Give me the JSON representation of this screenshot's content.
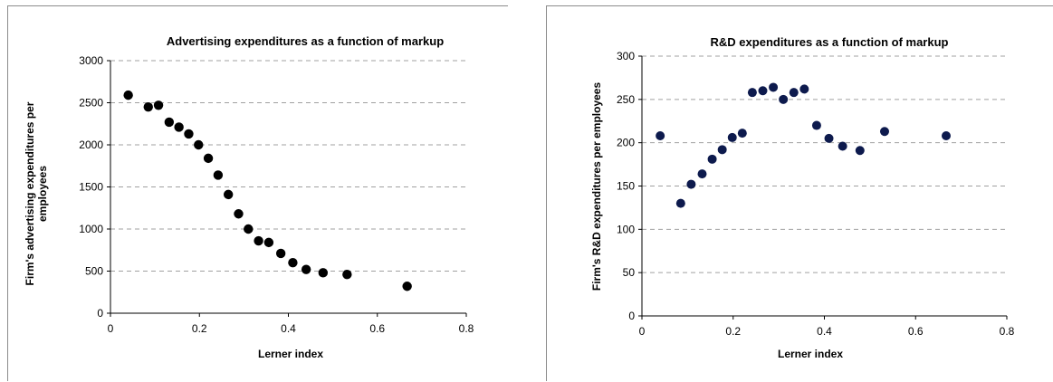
{
  "chart_data": [
    {
      "type": "scatter",
      "title": "Advertising expenditures as a function of markup",
      "xlabel": "Lerner index",
      "ylabel_lines": [
        "Firm's advertising expenditures per",
        "employees"
      ],
      "xlim": [
        0,
        0.8
      ],
      "ylim": [
        0,
        3000
      ],
      "xticks": [
        0,
        0.2,
        0.4,
        0.6,
        0.8
      ],
      "yticks": [
        0,
        500,
        1000,
        1500,
        2000,
        2500,
        3000
      ],
      "grid": "horizontal dashed",
      "marker_color": "#000000",
      "points": [
        {
          "x": 0.04,
          "y": 2590
        },
        {
          "x": 0.085,
          "y": 2450
        },
        {
          "x": 0.108,
          "y": 2470
        },
        {
          "x": 0.132,
          "y": 2270
        },
        {
          "x": 0.154,
          "y": 2210
        },
        {
          "x": 0.176,
          "y": 2130
        },
        {
          "x": 0.198,
          "y": 2000
        },
        {
          "x": 0.22,
          "y": 1840
        },
        {
          "x": 0.242,
          "y": 1640
        },
        {
          "x": 0.265,
          "y": 1410
        },
        {
          "x": 0.288,
          "y": 1180
        },
        {
          "x": 0.31,
          "y": 1000
        },
        {
          "x": 0.333,
          "y": 860
        },
        {
          "x": 0.356,
          "y": 840
        },
        {
          "x": 0.383,
          "y": 710
        },
        {
          "x": 0.41,
          "y": 600
        },
        {
          "x": 0.44,
          "y": 520
        },
        {
          "x": 0.478,
          "y": 480
        },
        {
          "x": 0.532,
          "y": 460
        },
        {
          "x": 0.667,
          "y": 320
        }
      ]
    },
    {
      "type": "scatter",
      "title": "R&D expenditures as a function of markup",
      "xlabel": "Lerner index",
      "ylabel_lines": [
        "Firm's R&D expenditures per employees"
      ],
      "xlim": [
        0,
        0.8
      ],
      "ylim": [
        0,
        300
      ],
      "xticks": [
        0,
        0.2,
        0.4,
        0.6,
        0.8
      ],
      "yticks": [
        0,
        50,
        100,
        150,
        200,
        250,
        300
      ],
      "grid": "horizontal dashed",
      "marker_color": "#0d1a4d",
      "points": [
        {
          "x": 0.04,
          "y": 208
        },
        {
          "x": 0.085,
          "y": 130
        },
        {
          "x": 0.108,
          "y": 152
        },
        {
          "x": 0.132,
          "y": 164
        },
        {
          "x": 0.154,
          "y": 181
        },
        {
          "x": 0.176,
          "y": 192
        },
        {
          "x": 0.198,
          "y": 206
        },
        {
          "x": 0.22,
          "y": 211
        },
        {
          "x": 0.242,
          "y": 258
        },
        {
          "x": 0.265,
          "y": 260
        },
        {
          "x": 0.288,
          "y": 264
        },
        {
          "x": 0.31,
          "y": 250
        },
        {
          "x": 0.333,
          "y": 258
        },
        {
          "x": 0.356,
          "y": 262
        },
        {
          "x": 0.383,
          "y": 220
        },
        {
          "x": 0.41,
          "y": 205
        },
        {
          "x": 0.44,
          "y": 196
        },
        {
          "x": 0.478,
          "y": 191
        },
        {
          "x": 0.532,
          "y": 213
        },
        {
          "x": 0.667,
          "y": 208
        }
      ]
    }
  ]
}
